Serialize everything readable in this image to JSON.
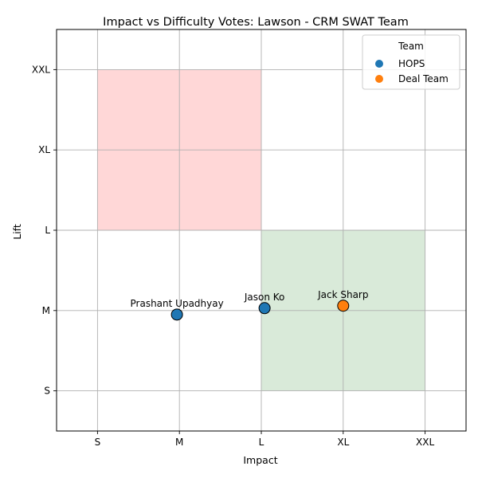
{
  "chart_data": {
    "type": "scatter",
    "title": "Impact vs Difficulty Votes: Lawson - CRM SWAT Team",
    "xlabel": "Impact",
    "ylabel": "Lift",
    "x_ticks": [
      "S",
      "M",
      "L",
      "XL",
      "XXL"
    ],
    "y_ticks": [
      "S",
      "M",
      "L",
      "XL",
      "XXL"
    ],
    "xlim": [
      0.5,
      5.5
    ],
    "ylim": [
      0.5,
      5.5
    ],
    "grid": true,
    "regions": [
      {
        "name": "high-lift-low-impact",
        "x_range": [
          1,
          3
        ],
        "y_range": [
          3,
          5
        ],
        "color": "#ffd7d7"
      },
      {
        "name": "low-lift-high-impact",
        "x_range": [
          3,
          5
        ],
        "y_range": [
          1,
          3
        ],
        "color": "#d9ead9"
      }
    ],
    "legend": {
      "title": "Team",
      "position": "top-right",
      "entries": [
        {
          "label": "HOPS",
          "color": "#1f77b4"
        },
        {
          "label": "Deal Team",
          "color": "#ff7f0e"
        }
      ]
    },
    "points": [
      {
        "label": "Prashant Upadhyay",
        "team": "HOPS",
        "x": 1.97,
        "y": 1.95
      },
      {
        "label": "Jason Ko",
        "team": "HOPS",
        "x": 3.04,
        "y": 2.03
      },
      {
        "label": "Jack Sharp",
        "team": "Deal Team",
        "x": 4.0,
        "y": 2.06
      }
    ]
  }
}
